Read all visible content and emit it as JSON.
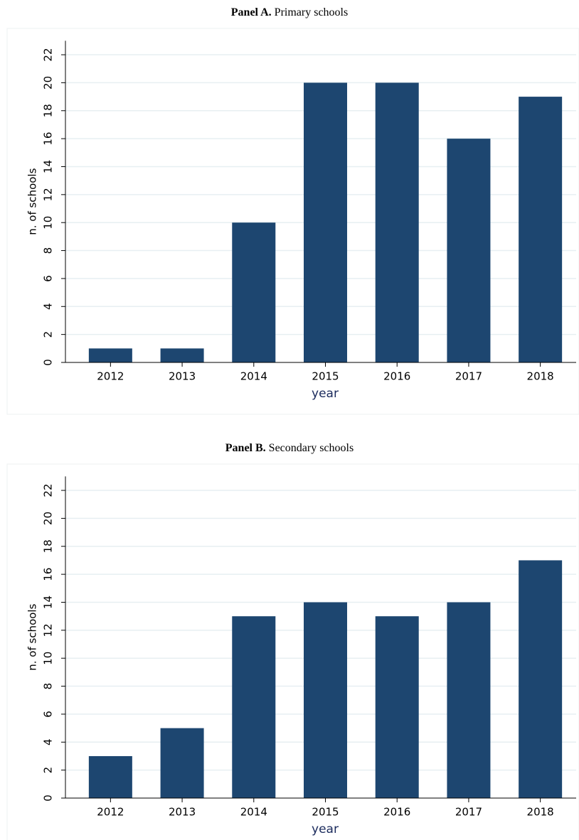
{
  "chart_data": [
    {
      "type": "bar",
      "panel_label": "Panel A.",
      "title": "Primary schools",
      "x_label": "year",
      "y_label": "n. of schools",
      "categories": [
        "2012",
        "2013",
        "2014",
        "2015",
        "2016",
        "2017",
        "2018"
      ],
      "values": [
        1,
        1,
        10,
        20,
        20,
        16,
        19
      ],
      "color": "#1d4670",
      "ylim": [
        0,
        23
      ],
      "yticks": [
        0,
        2,
        4,
        6,
        8,
        10,
        12,
        14,
        16,
        18,
        20,
        22
      ],
      "grid": true
    },
    {
      "type": "bar",
      "panel_label": "Panel B.",
      "title": "Secondary schools",
      "x_label": "year",
      "y_label": "n. of schools",
      "categories": [
        "2012",
        "2013",
        "2014",
        "2015",
        "2016",
        "2017",
        "2018"
      ],
      "values": [
        3,
        5,
        13,
        14,
        13,
        14,
        17
      ],
      "color": "#1d4670",
      "ylim": [
        0,
        23
      ],
      "yticks": [
        0,
        2,
        4,
        6,
        8,
        10,
        12,
        14,
        16,
        18,
        20,
        22
      ],
      "grid": true
    }
  ]
}
